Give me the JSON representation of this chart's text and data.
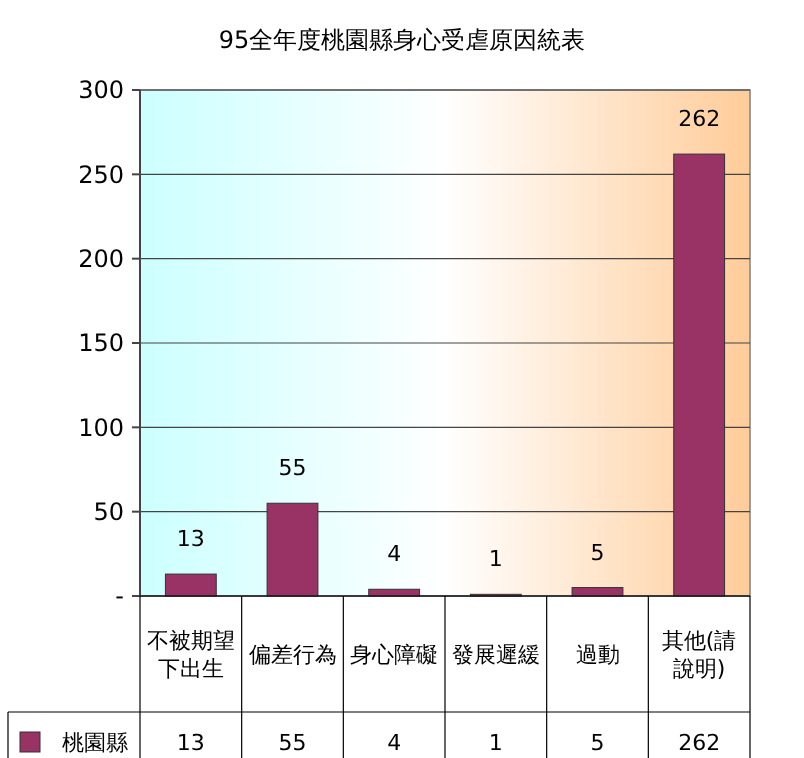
{
  "chart_data": {
    "type": "bar",
    "title": "95全年度桃園縣身心受虐原因統表",
    "categories": [
      "不被期望下出生",
      "偏差行為",
      "身心障礙",
      "發展遲緩",
      "過動",
      "其他(請說明)"
    ],
    "series": [
      {
        "name": "桃園縣",
        "color": "#993366",
        "values": [
          13,
          55,
          4,
          1,
          5,
          262
        ],
        "value_labels": [
          "13",
          "55",
          "4",
          "1",
          "5",
          "262"
        ]
      }
    ],
    "ylim": [
      0,
      300
    ],
    "yticks": [
      {
        "value": 0,
        "label": "-"
      },
      50,
      100,
      150,
      200,
      250,
      300
    ],
    "data_labels": true,
    "legend": "bottom",
    "grid": "y"
  }
}
